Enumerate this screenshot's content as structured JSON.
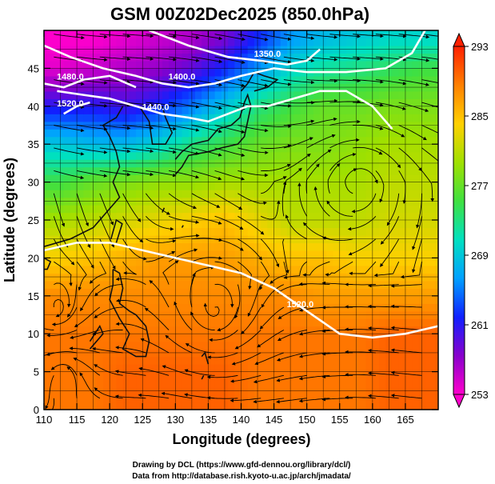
{
  "chart_data": {
    "type": "heatmap",
    "title": "GSM 00Z02Dec2025 (850.0hPa)",
    "xlabel": "Longitude (degrees)",
    "ylabel": "Latitude (degrees)",
    "xlim": [
      110,
      170
    ],
    "ylim": [
      0,
      50
    ],
    "x_ticks": [
      "110",
      "115",
      "120",
      "125",
      "130",
      "135",
      "140",
      "145",
      "150",
      "155",
      "160",
      "165"
    ],
    "y_ticks": [
      "0",
      "5",
      "10",
      "15",
      "20",
      "25",
      "30",
      "35",
      "40",
      "45"
    ],
    "grid": true,
    "colorbar": {
      "ticks": [
        "253",
        "261",
        "269",
        "277",
        "285",
        "293"
      ],
      "min": 253,
      "max": 293,
      "placement": "right",
      "colors": [
        "#ff00cc",
        "#8800cc",
        "#1020ff",
        "#00a0ff",
        "#00e0c0",
        "#40e040",
        "#a0e000",
        "#ffd000",
        "#ff8000",
        "#ff2000"
      ]
    },
    "temperature_field_rows": [
      {
        "lat": 49,
        "temps": [
          253,
          253,
          254,
          255,
          256,
          258,
          262,
          266,
          268,
          269,
          270,
          270
        ]
      },
      {
        "lat": 45,
        "temps": [
          254,
          255,
          256,
          257,
          259,
          262,
          266,
          270,
          272,
          273,
          274,
          275
        ]
      },
      {
        "lat": 40,
        "temps": [
          261,
          261,
          260,
          262,
          265,
          269,
          273,
          275,
          277,
          277,
          278,
          278
        ]
      },
      {
        "lat": 35,
        "temps": [
          269,
          268,
          268,
          270,
          273,
          275,
          277,
          278,
          278,
          279,
          280,
          280
        ]
      },
      {
        "lat": 30,
        "temps": [
          275,
          277,
          278,
          279,
          279,
          280,
          280,
          280,
          280,
          280,
          281,
          281
        ]
      },
      {
        "lat": 25,
        "temps": [
          280,
          281,
          282,
          283,
          284,
          285,
          283,
          281,
          281,
          281,
          282,
          282
        ]
      },
      {
        "lat": 20,
        "temps": [
          284,
          285,
          286,
          287,
          287,
          287,
          286,
          285,
          285,
          284,
          284,
          284
        ]
      },
      {
        "lat": 15,
        "temps": [
          288,
          288,
          288,
          288,
          288,
          288,
          288,
          288,
          287,
          287,
          287,
          287
        ]
      },
      {
        "lat": 10,
        "temps": [
          289,
          289,
          289,
          289,
          289,
          289,
          289,
          289,
          289,
          289,
          290,
          290
        ]
      },
      {
        "lat": 5,
        "temps": [
          289,
          289,
          290,
          290,
          290,
          290,
          289,
          289,
          289,
          289,
          290,
          290
        ]
      },
      {
        "lat": 1,
        "temps": [
          289,
          289,
          290,
          290,
          290,
          290,
          289,
          289,
          289,
          289,
          290,
          290
        ]
      }
    ],
    "temperature_field_lons": [
      112.5,
      117.5,
      122.5,
      127.5,
      132.5,
      137.5,
      142.5,
      147.5,
      152.5,
      157.5,
      162.5,
      167.5
    ],
    "contours": [
      {
        "label": "1350.0",
        "points": [
          [
            126,
            50
          ],
          [
            132,
            48
          ],
          [
            138,
            46.5
          ],
          [
            143,
            46
          ],
          [
            147,
            45.5
          ],
          [
            150,
            46
          ],
          [
            152,
            47.5
          ]
        ],
        "label_at": [
          144,
          46.5
        ]
      },
      {
        "label": "1400.0",
        "points": [
          [
            110,
            48
          ],
          [
            114,
            46.5
          ],
          [
            119,
            45
          ],
          [
            124,
            44
          ],
          [
            128,
            43
          ],
          [
            132,
            42.5
          ],
          [
            136,
            43
          ],
          [
            140,
            44
          ],
          [
            145,
            45
          ],
          [
            150,
            44.5
          ],
          [
            156,
            44.5
          ],
          [
            162,
            45
          ],
          [
            166,
            47
          ],
          [
            168,
            50
          ]
        ],
        "label_at": [
          131,
          43.5
        ]
      },
      {
        "label": "1440.0",
        "points": [
          [
            112,
            42
          ],
          [
            116,
            41.5
          ],
          [
            120,
            41
          ],
          [
            124,
            40
          ],
          [
            128,
            39
          ],
          [
            132,
            38.5
          ],
          [
            135,
            38
          ],
          [
            138,
            39
          ],
          [
            141,
            40
          ],
          [
            144,
            40
          ],
          [
            148,
            41
          ],
          [
            152,
            42
          ],
          [
            156,
            42
          ],
          [
            160,
            40
          ],
          [
            163,
            37
          ]
        ],
        "label_at": [
          127,
          39.5
        ]
      },
      {
        "label": "1480.0",
        "points": [
          [
            110,
            43
          ],
          [
            113,
            42.5
          ],
          [
            116,
            43.5
          ],
          [
            120,
            44
          ],
          [
            124,
            42.5
          ]
        ],
        "label_at": [
          114,
          43.5
        ]
      },
      {
        "label": "1520.0",
        "points": [
          [
            110,
            21
          ],
          [
            115,
            22
          ],
          [
            120,
            22
          ],
          [
            125,
            21
          ],
          [
            130,
            20
          ],
          [
            135,
            19
          ],
          [
            140,
            18
          ],
          [
            145,
            16
          ],
          [
            150,
            13
          ],
          [
            155,
            10
          ],
          [
            160,
            9.5
          ],
          [
            165,
            10
          ],
          [
            170,
            11
          ]
        ],
        "label_at": [
          149,
          13.5
        ]
      },
      {
        "label": "1520.0",
        "points": [
          [
            113,
            39
          ],
          [
            115,
            40
          ],
          [
            117,
            40.5
          ]
        ],
        "label_at": [
          114,
          40
        ]
      }
    ],
    "annotations": [
      "Drawing by DCL (https://www.gfd-dennou.org/library/dcl/)",
      "Data from http://database.rish.kyoto-u.ac.jp/arch/jmadata/"
    ]
  }
}
